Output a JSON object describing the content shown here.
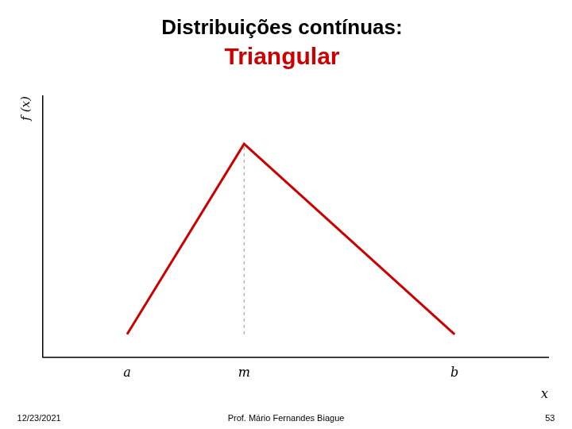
{
  "chart_data": {
    "type": "line",
    "title": "Distribuições contínuas:",
    "subtitle": "Triangular",
    "xlabel": "x",
    "ylabel": "f (x)",
    "series": [
      {
        "color": "#cc0000",
        "line_style": "solid",
        "x": [
          1.5,
          4.0,
          8.5
        ],
        "values": [
          0,
          1.0,
          0
        ]
      },
      {
        "color": "#999999",
        "line_style": "dashed",
        "x": [
          4.0,
          4.0
        ],
        "values": [
          0,
          1.0
        ]
      }
    ],
    "xlim": [
      -0.3,
      10.5
    ],
    "ylim": [
      -0.12,
      1.25
    ],
    "xticks": [
      {
        "value": 1.5,
        "label": "a"
      },
      {
        "value": 4.0,
        "label": "m"
      },
      {
        "value": 8.5,
        "label": "b"
      }
    ],
    "yticks": [],
    "tick_labels": "x",
    "grid": false,
    "annotations": [
      "12/23/2021",
      "Prof. Mário Fernandes Biague",
      "53"
    ]
  }
}
